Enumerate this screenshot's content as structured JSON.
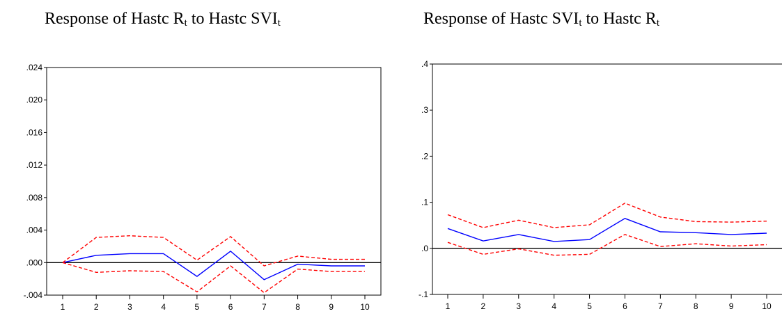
{
  "chart_data": [
    {
      "type": "line",
      "title": {
        "main": "Response of Hastc R",
        "sub1": "t",
        "mid": " to Hastc SVI",
        "sub2": "t"
      },
      "x": [
        1,
        2,
        3,
        4,
        5,
        6,
        7,
        8,
        9,
        10
      ],
      "xticks": [
        "1",
        "2",
        "3",
        "4",
        "5",
        "6",
        "7",
        "8",
        "9",
        "10"
      ],
      "yticks": [
        ".024",
        ".020",
        ".016",
        ".012",
        ".008",
        ".004",
        ".000",
        "-.004"
      ],
      "ylim": [
        -0.004,
        0.024
      ],
      "zero_line": true,
      "series": [
        {
          "role": "response",
          "color": "#0000ff",
          "style": "solid",
          "values": [
            0.0,
            0.0009,
            0.0011,
            0.0011,
            -0.0017,
            0.0014,
            -0.0021,
            -0.0002,
            -0.0004,
            -0.0004
          ]
        },
        {
          "role": "upper-band",
          "color": "#ff0000",
          "style": "dashed",
          "values": [
            0.0,
            0.0031,
            0.0033,
            0.0031,
            0.0003,
            0.0032,
            -0.0004,
            0.0008,
            0.0004,
            0.0004
          ]
        },
        {
          "role": "lower-band",
          "color": "#ff0000",
          "style": "dashed",
          "values": [
            0.0,
            -0.0012,
            -0.001,
            -0.0011,
            -0.0036,
            -0.0004,
            -0.0037,
            -0.0008,
            -0.0011,
            -0.0011
          ]
        }
      ]
    },
    {
      "type": "line",
      "title": {
        "main": "Response of Hastc SVI",
        "sub1": "t",
        "mid": " to Hastc R",
        "sub2": "t"
      },
      "x": [
        1,
        2,
        3,
        4,
        5,
        6,
        7,
        8,
        9,
        10
      ],
      "xticks": [
        "1",
        "2",
        "3",
        "4",
        "5",
        "6",
        "7",
        "8",
        "9",
        "10"
      ],
      "yticks": [
        ".4",
        ".3",
        ".2",
        ".1",
        ".0",
        "-.1"
      ],
      "ylim": [
        -0.1,
        0.4
      ],
      "zero_line": true,
      "series": [
        {
          "role": "response",
          "color": "#0000ff",
          "style": "solid",
          "values": [
            0.043,
            0.016,
            0.03,
            0.015,
            0.019,
            0.065,
            0.036,
            0.034,
            0.03,
            0.033
          ]
        },
        {
          "role": "upper-band",
          "color": "#ff0000",
          "style": "dashed",
          "values": [
            0.073,
            0.045,
            0.061,
            0.045,
            0.051,
            0.098,
            0.068,
            0.058,
            0.057,
            0.059
          ]
        },
        {
          "role": "lower-band",
          "color": "#ff0000",
          "style": "dashed",
          "values": [
            0.013,
            -0.013,
            -0.001,
            -0.015,
            -0.013,
            0.03,
            0.004,
            0.01,
            0.005,
            0.008
          ]
        }
      ]
    }
  ]
}
